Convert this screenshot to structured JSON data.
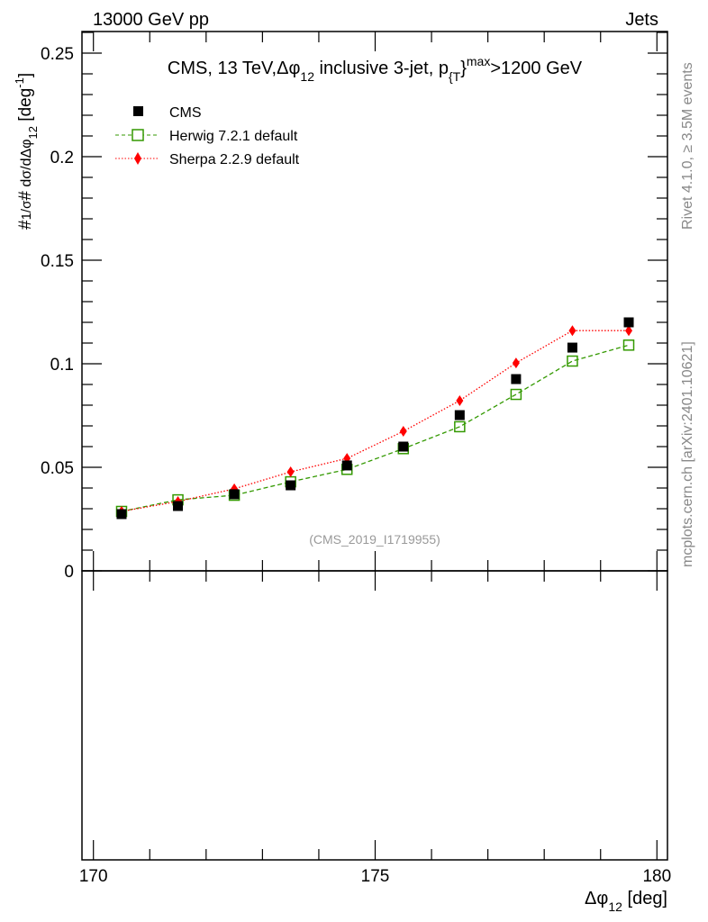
{
  "header": {
    "left": "13000 GeV pp",
    "right": "Jets"
  },
  "side": {
    "rivet": "Rivet 4.1.0, ≥ 3.5M events",
    "mcplots": "mcplots.cern.ch [arXiv:2401.10621]"
  },
  "chart_data": {
    "type": "scatter",
    "title_main": "CMS, 13 TeV,",
    "title_dphi": "Δφ",
    "title_sub12": "12",
    "title_rest": " inclusive 3-jet, p",
    "title_subT": "{T",
    "title_sup": "max",
    "title_end": ">1200 GeV",
    "analysis_id": "(CMS_2019_I1719955)",
    "xlabel": "Δφ",
    "xlabel_sub": "12",
    "xlabel_unit": " [deg]",
    "ylabel_a": "#",
    "ylabel_frac1": "1/σ",
    "ylabel_b": "#",
    "ylabel_frac2": " dσ/dΔφ",
    "ylabel_sub": "12",
    "ylabel_unit": " [deg",
    "ylabel_sup": "-1",
    "ylabel_close": "]",
    "xlim": [
      170,
      180
    ],
    "ylim": [
      0,
      0.26
    ],
    "xticks": [
      "170",
      "175",
      "180"
    ],
    "yticks": [
      "0",
      "0.05",
      "0.1",
      "0.15",
      "0.2",
      "0.25"
    ],
    "x": [
      170.5,
      171.5,
      172.5,
      173.5,
      174.5,
      175.5,
      176.5,
      177.5,
      178.5,
      179.5
    ],
    "series": [
      {
        "name": "CMS",
        "color": "#000000",
        "marker": "square-filled",
        "values": [
          0.0274,
          0.0313,
          0.037,
          0.0413,
          0.0509,
          0.06,
          0.0752,
          0.0926,
          0.1078,
          0.12
        ]
      },
      {
        "name": "Herwig 7.2.1 default",
        "color": "#339900",
        "marker": "square-open",
        "line": "dashed",
        "values": [
          0.0287,
          0.0343,
          0.0365,
          0.043,
          0.049,
          0.059,
          0.0696,
          0.0852,
          0.1013,
          0.109
        ]
      },
      {
        "name": "Sherpa 2.2.9 default",
        "color": "#ff0000",
        "marker": "diamond",
        "line": "dotted",
        "values": [
          0.0287,
          0.0335,
          0.0396,
          0.0478,
          0.0543,
          0.0674,
          0.0822,
          0.1004,
          0.116,
          0.116
        ]
      }
    ],
    "legend_position": "top-left",
    "grid": false
  }
}
